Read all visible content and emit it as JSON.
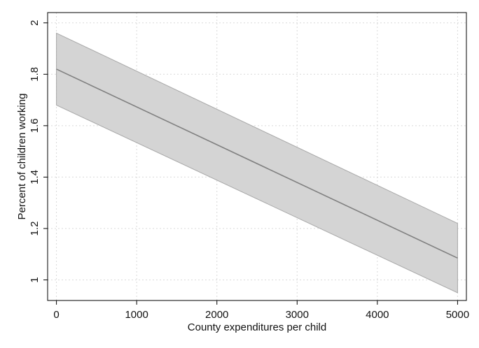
{
  "chart_data": {
    "type": "area",
    "xlabel": "County expenditures per child",
    "ylabel": "Percent of children working",
    "xlim": [
      -110,
      5110
    ],
    "ylim": [
      0.92,
      2.04
    ],
    "xticks": [
      0,
      1000,
      2000,
      3000,
      4000,
      5000
    ],
    "yticks": [
      1,
      1.2,
      1.4,
      1.6,
      1.8,
      2
    ],
    "grid": true,
    "legend": "none",
    "series": [
      {
        "kind": "band",
        "x": [
          0,
          5000
        ],
        "lower": [
          1.68,
          0.95
        ],
        "upper": [
          1.96,
          1.22
        ],
        "fill_color": "#d4d4d4",
        "edge_color": "#a8a8a8"
      },
      {
        "kind": "line",
        "x": [
          0,
          5000
        ],
        "y": [
          1.82,
          1.085
        ],
        "color": "#808080"
      }
    ]
  }
}
